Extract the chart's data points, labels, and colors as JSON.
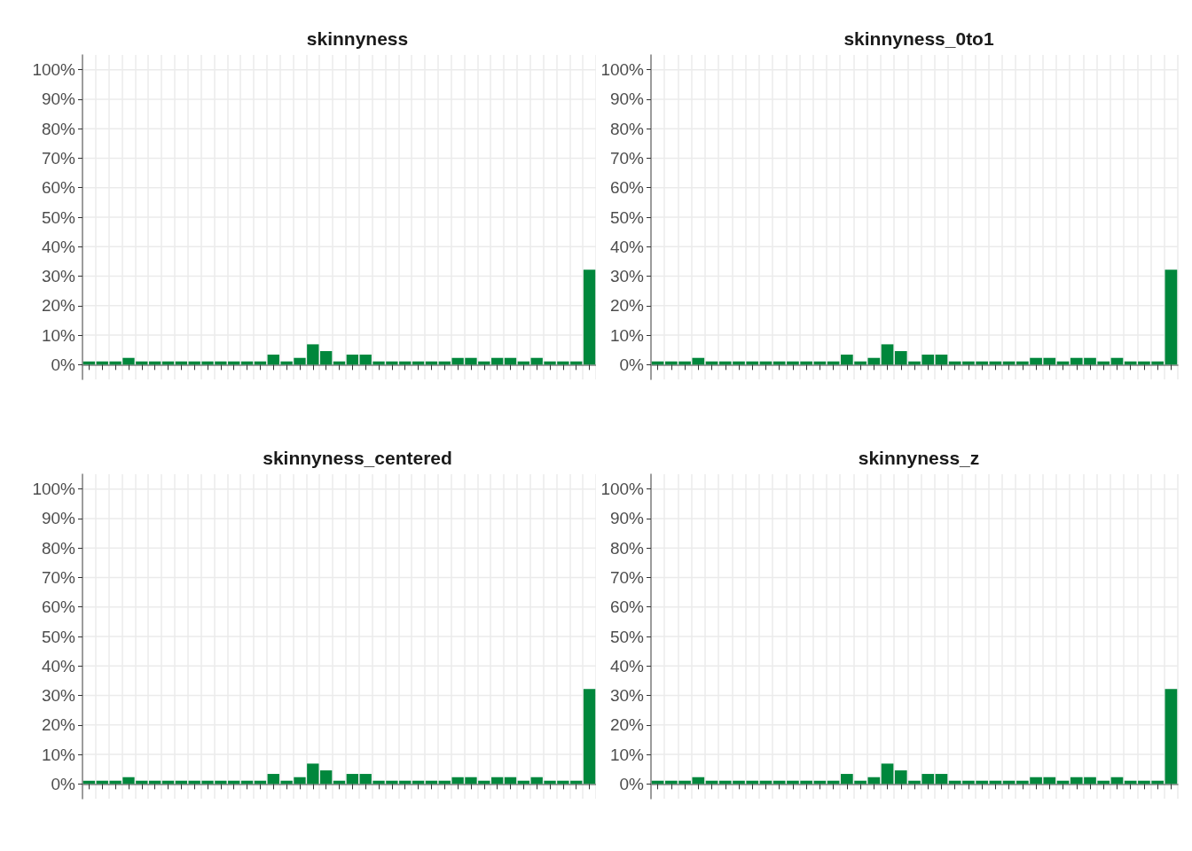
{
  "chart_data": [
    {
      "type": "bar",
      "title": "skinnyness",
      "categories": [
        null,
        null,
        null,
        null,
        null,
        null,
        null,
        null,
        null,
        null,
        null,
        null,
        null,
        null,
        null,
        null,
        null,
        null,
        null,
        null,
        null,
        null,
        null,
        null,
        null,
        null,
        null,
        null,
        null,
        null,
        null,
        null,
        null,
        null,
        null,
        null,
        null,
        null,
        null
      ],
      "values": [
        1.1,
        1.1,
        1.1,
        2.3,
        1.1,
        1.1,
        1.1,
        1.1,
        1.1,
        1.1,
        1.1,
        1.1,
        1.1,
        1.1,
        3.4,
        1.1,
        2.3,
        6.9,
        4.6,
        1.1,
        3.4,
        3.4,
        1.1,
        1.1,
        1.1,
        1.1,
        1.1,
        1.1,
        2.3,
        2.3,
        1.1,
        2.3,
        2.3,
        1.1,
        2.3,
        1.1,
        1.1,
        1.1,
        32.2
      ],
      "color": "#00873c",
      "ylim": [
        -5,
        105
      ],
      "yticks": [
        {
          "value": 0,
          "label": "0%"
        },
        {
          "value": 10,
          "label": "10%"
        },
        {
          "value": 20,
          "label": "20%"
        },
        {
          "value": 30,
          "label": "30%"
        },
        {
          "value": 40,
          "label": "40%"
        },
        {
          "value": 50,
          "label": "50%"
        },
        {
          "value": 60,
          "label": "60%"
        },
        {
          "value": 70,
          "label": "70%"
        },
        {
          "value": 80,
          "label": "80%"
        },
        {
          "value": 90,
          "label": "90%"
        },
        {
          "value": 100,
          "label": "100%"
        }
      ],
      "grid": true
    },
    {
      "type": "bar",
      "title": "skinnyness_0to1",
      "categories": [
        null,
        null,
        null,
        null,
        null,
        null,
        null,
        null,
        null,
        null,
        null,
        null,
        null,
        null,
        null,
        null,
        null,
        null,
        null,
        null,
        null,
        null,
        null,
        null,
        null,
        null,
        null,
        null,
        null,
        null,
        null,
        null,
        null,
        null,
        null,
        null,
        null,
        null,
        null
      ],
      "values": [
        1.1,
        1.1,
        1.1,
        2.3,
        1.1,
        1.1,
        1.1,
        1.1,
        1.1,
        1.1,
        1.1,
        1.1,
        1.1,
        1.1,
        3.4,
        1.1,
        2.3,
        6.9,
        4.6,
        1.1,
        3.4,
        3.4,
        1.1,
        1.1,
        1.1,
        1.1,
        1.1,
        1.1,
        2.3,
        2.3,
        1.1,
        2.3,
        2.3,
        1.1,
        2.3,
        1.1,
        1.1,
        1.1,
        32.2
      ],
      "color": "#00873c",
      "ylim": [
        -5,
        105
      ],
      "yticks": [
        {
          "value": 0,
          "label": "0%"
        },
        {
          "value": 10,
          "label": "10%"
        },
        {
          "value": 20,
          "label": "20%"
        },
        {
          "value": 30,
          "label": "30%"
        },
        {
          "value": 40,
          "label": "40%"
        },
        {
          "value": 50,
          "label": "50%"
        },
        {
          "value": 60,
          "label": "60%"
        },
        {
          "value": 70,
          "label": "70%"
        },
        {
          "value": 80,
          "label": "80%"
        },
        {
          "value": 90,
          "label": "90%"
        },
        {
          "value": 100,
          "label": "100%"
        }
      ],
      "grid": true
    },
    {
      "type": "bar",
      "title": "skinnyness_centered",
      "categories": [
        null,
        null,
        null,
        null,
        null,
        null,
        null,
        null,
        null,
        null,
        null,
        null,
        null,
        null,
        null,
        null,
        null,
        null,
        null,
        null,
        null,
        null,
        null,
        null,
        null,
        null,
        null,
        null,
        null,
        null,
        null,
        null,
        null,
        null,
        null,
        null,
        null,
        null,
        null
      ],
      "values": [
        1.1,
        1.1,
        1.1,
        2.3,
        1.1,
        1.1,
        1.1,
        1.1,
        1.1,
        1.1,
        1.1,
        1.1,
        1.1,
        1.1,
        3.4,
        1.1,
        2.3,
        6.9,
        4.6,
        1.1,
        3.4,
        3.4,
        1.1,
        1.1,
        1.1,
        1.1,
        1.1,
        1.1,
        2.3,
        2.3,
        1.1,
        2.3,
        2.3,
        1.1,
        2.3,
        1.1,
        1.1,
        1.1,
        32.2
      ],
      "color": "#00873c",
      "ylim": [
        -5,
        105
      ],
      "yticks": [
        {
          "value": 0,
          "label": "0%"
        },
        {
          "value": 10,
          "label": "10%"
        },
        {
          "value": 20,
          "label": "20%"
        },
        {
          "value": 30,
          "label": "30%"
        },
        {
          "value": 40,
          "label": "40%"
        },
        {
          "value": 50,
          "label": "50%"
        },
        {
          "value": 60,
          "label": "60%"
        },
        {
          "value": 70,
          "label": "70%"
        },
        {
          "value": 80,
          "label": "80%"
        },
        {
          "value": 90,
          "label": "90%"
        },
        {
          "value": 100,
          "label": "100%"
        }
      ],
      "grid": true
    },
    {
      "type": "bar",
      "title": "skinnyness_z",
      "categories": [
        null,
        null,
        null,
        null,
        null,
        null,
        null,
        null,
        null,
        null,
        null,
        null,
        null,
        null,
        null,
        null,
        null,
        null,
        null,
        null,
        null,
        null,
        null,
        null,
        null,
        null,
        null,
        null,
        null,
        null,
        null,
        null,
        null,
        null,
        null,
        null,
        null,
        null,
        null
      ],
      "values": [
        1.1,
        1.1,
        1.1,
        2.3,
        1.1,
        1.1,
        1.1,
        1.1,
        1.1,
        1.1,
        1.1,
        1.1,
        1.1,
        1.1,
        3.4,
        1.1,
        2.3,
        6.9,
        4.6,
        1.1,
        3.4,
        3.4,
        1.1,
        1.1,
        1.1,
        1.1,
        1.1,
        1.1,
        2.3,
        2.3,
        1.1,
        2.3,
        2.3,
        1.1,
        2.3,
        1.1,
        1.1,
        1.1,
        32.2
      ],
      "color": "#00873c",
      "ylim": [
        -5,
        105
      ],
      "yticks": [
        {
          "value": 0,
          "label": "0%"
        },
        {
          "value": 10,
          "label": "10%"
        },
        {
          "value": 20,
          "label": "20%"
        },
        {
          "value": 30,
          "label": "30%"
        },
        {
          "value": 40,
          "label": "40%"
        },
        {
          "value": 50,
          "label": "50%"
        },
        {
          "value": 60,
          "label": "60%"
        },
        {
          "value": 70,
          "label": "70%"
        },
        {
          "value": 80,
          "label": "80%"
        },
        {
          "value": 90,
          "label": "90%"
        },
        {
          "value": 100,
          "label": "100%"
        }
      ],
      "grid": true
    }
  ]
}
